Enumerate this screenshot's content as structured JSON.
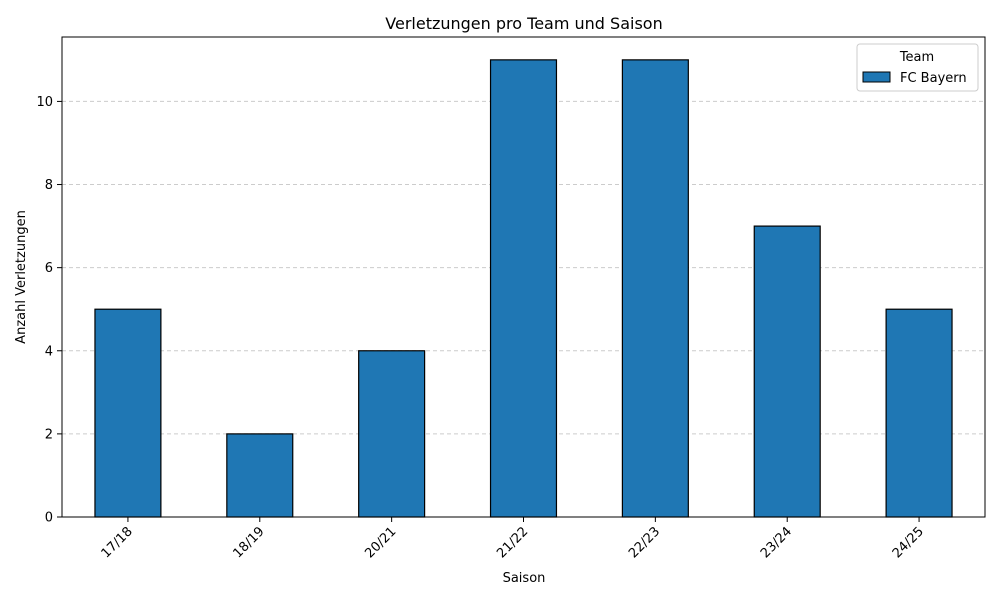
{
  "chart_data": {
    "type": "bar",
    "title": "Verletzungen pro Team und Saison",
    "xlabel": "Saison",
    "ylabel": "Anzahl Verletzungen",
    "categories": [
      "17/18",
      "18/19",
      "20/21",
      "21/22",
      "22/23",
      "23/24",
      "24/25"
    ],
    "series": [
      {
        "name": "FC Bayern",
        "values": [
          5,
          2,
          4,
          11,
          11,
          7,
          5
        ],
        "color": "#1f77b4"
      }
    ],
    "ylim": [
      0,
      11.55
    ],
    "yticks": [
      0,
      2,
      4,
      6,
      8,
      10
    ],
    "grid": "y-dashed",
    "legend": {
      "title": "Team",
      "position": "top-right"
    }
  }
}
